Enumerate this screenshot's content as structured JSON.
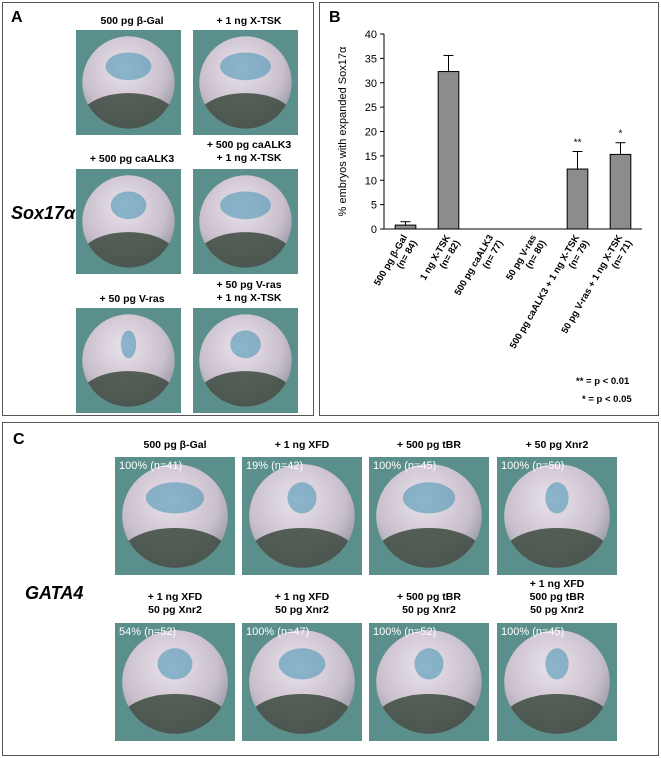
{
  "panel_a": {
    "letter": "A",
    "gene": "Sox17α",
    "embryos": [
      {
        "line1": "500 pg β-Gal",
        "line2": ""
      },
      {
        "line1": "+ 1 ng X-TSK",
        "line2": ""
      },
      {
        "line1": "+ 500 pg caALK3",
        "line2": ""
      },
      {
        "line1": "+ 500 pg caALK3",
        "line2": "+ 1 ng X-TSK"
      },
      {
        "line1": "+ 50 pg V-ras",
        "line2": ""
      },
      {
        "line1": "+ 50 pg V-ras",
        "line2": "+ 1 ng X-TSK"
      }
    ]
  },
  "panel_b": {
    "letter": "B",
    "legend": [
      "** = p < 0.01",
      "* = p < 0.05"
    ]
  },
  "chart_data": {
    "type": "bar",
    "categories": [
      "500 pg β-Gal (n= 84)",
      "1 ng X-TSK (n= 82)",
      "500 pg caALK3 (n= 77)",
      "50 pg V-ras (n= 80)",
      "500 pg caALK3 + 1 ng X-TSK (n= 79)",
      "50 pg V-ras + 1 ng X-TSK (n= 71)"
    ],
    "category_lines": [
      [
        "500 pg β-Gal",
        "(n= 84)"
      ],
      [
        "1 ng X-TSK",
        "(n= 82)"
      ],
      [
        "500 pg caALK3",
        "(n= 77)"
      ],
      [
        "50 pg V-ras",
        "(n= 80)"
      ],
      [
        "500 pg caALK3 + 1 ng X-TSK",
        "(n= 79)"
      ],
      [
        "50 pg V-ras + 1 ng X-TSK",
        "(n= 71)"
      ]
    ],
    "values": [
      0.8,
      32.3,
      0,
      0,
      12.3,
      15.3
    ],
    "errors": [
      0.7,
      3.3,
      0,
      0,
      3.6,
      2.4
    ],
    "significance": [
      "",
      "",
      "",
      "",
      "**",
      "*"
    ],
    "ylabel": "% embryos with expanded Sox17α",
    "ylim": [
      0,
      40
    ],
    "yticks": [
      0,
      5,
      10,
      15,
      20,
      25,
      30,
      35,
      40
    ],
    "grid": false
  },
  "panel_c": {
    "letter": "C",
    "gene": "GATA4",
    "embryos": [
      {
        "lines": [
          "500 pg β-Gal"
        ],
        "pct": "100% (n=41)"
      },
      {
        "lines": [
          "+ 1 ng XFD"
        ],
        "pct": "19% (n=42)"
      },
      {
        "lines": [
          "+ 500 pg tBR"
        ],
        "pct": "100% (n=45)"
      },
      {
        "lines": [
          "+ 50 pg Xnr2"
        ],
        "pct": "100% (n=50)"
      },
      {
        "lines": [
          "+ 1 ng XFD",
          "50 pg Xnr2"
        ],
        "pct": "54% (n=52)"
      },
      {
        "lines": [
          "+ 1 ng XFD",
          "50 pg Xnr2"
        ],
        "pct": "100% (n=47)"
      },
      {
        "lines": [
          "+ 500 pg tBR",
          "50 pg Xnr2"
        ],
        "pct": "100% (n=52)"
      },
      {
        "lines": [
          "+ 1 ng XFD",
          "500 pg tBR",
          "50 pg Xnr2"
        ],
        "pct": "100% (n=45)"
      }
    ]
  },
  "colors": {
    "bar": "#8c8c8c",
    "embryo_background": "#5b8f8b",
    "stain": "#3f8fb0"
  }
}
